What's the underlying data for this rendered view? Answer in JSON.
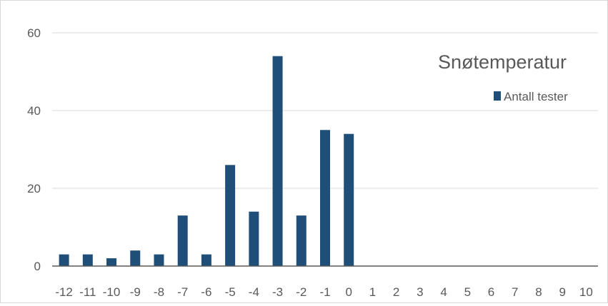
{
  "chart_data": {
    "type": "bar",
    "title": "Snøtemperatur",
    "xlabel": "",
    "ylabel": "",
    "categories": [
      "-12",
      "-11",
      "-10",
      "-9",
      "-8",
      "-7",
      "-6",
      "-5",
      "-4",
      "-3",
      "-2",
      "-1",
      "0",
      "1",
      "2",
      "3",
      "4",
      "5",
      "6",
      "7",
      "8",
      "9",
      "10"
    ],
    "series": [
      {
        "name": "Antall tester",
        "color": "#1f4e79",
        "values": [
          3,
          3,
          2,
          4,
          3,
          13,
          3,
          26,
          14,
          54,
          13,
          35,
          34,
          0,
          0,
          0,
          0,
          0,
          0,
          0,
          0,
          0,
          0
        ]
      }
    ],
    "ylim": [
      0,
      60
    ],
    "yticks": [
      "0",
      "20",
      "40",
      "60"
    ],
    "grid": true,
    "legend": "top-right"
  }
}
